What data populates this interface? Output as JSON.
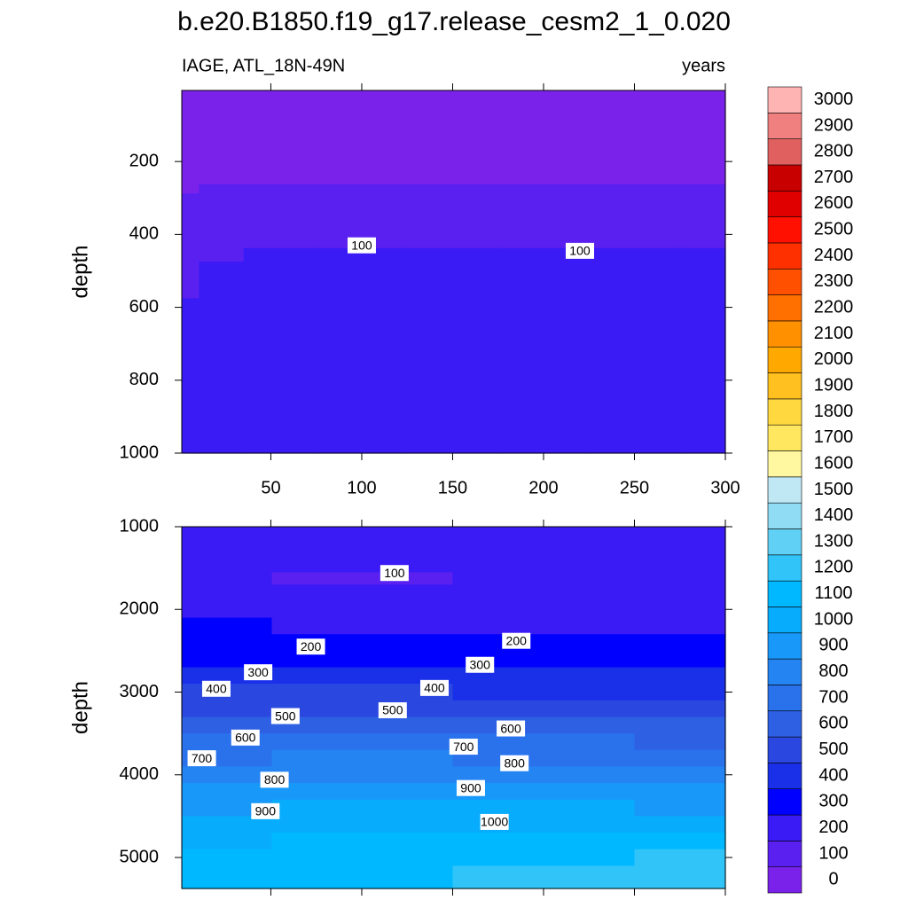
{
  "title": "b.e20.B1850.f19_g17.release_cesm2_1_0.020",
  "chart_data": [
    {
      "type": "contour",
      "left_string": "IAGE, ATL_18N-49N",
      "right_string": "years",
      "ylabel": "depth",
      "x": [
        1,
        20,
        50,
        100,
        150,
        200,
        250,
        300
      ],
      "depth": [
        5,
        100,
        200,
        250,
        275,
        300,
        350,
        400,
        425,
        450,
        500,
        550,
        600,
        800,
        1000
      ],
      "values": [
        [
          0,
          0,
          0,
          0,
          0,
          0,
          0,
          0
        ],
        [
          0,
          0,
          0,
          0,
          0,
          0,
          0,
          0
        ],
        [
          0,
          0,
          0,
          0,
          0,
          0,
          0,
          0
        ],
        [
          0,
          0,
          0,
          0,
          0,
          0,
          0,
          0
        ],
        [
          0,
          5,
          10,
          10,
          10,
          10,
          10,
          10
        ],
        [
          5,
          20,
          30,
          30,
          30,
          30,
          30,
          30
        ],
        [
          20,
          45,
          60,
          60,
          60,
          60,
          60,
          60
        ],
        [
          40,
          70,
          85,
          85,
          85,
          85,
          88,
          85
        ],
        [
          48,
          85,
          98,
          98,
          97,
          98,
          99,
          98
        ],
        [
          55,
          100,
          110,
          110,
          110,
          110,
          110,
          110
        ],
        [
          70,
          115,
          125,
          125,
          125,
          125,
          125,
          125
        ],
        [
          90,
          130,
          140,
          140,
          140,
          140,
          140,
          140
        ],
        [
          105,
          145,
          150,
          150,
          150,
          150,
          150,
          150
        ],
        [
          150,
          170,
          170,
          170,
          170,
          170,
          170,
          170
        ],
        [
          185,
          190,
          190,
          190,
          190,
          190,
          190,
          190
        ]
      ],
      "xlim": [
        1,
        300
      ],
      "ylim": [
        5,
        1000
      ],
      "y_reversed": true,
      "show_xtick_labels": true,
      "xticks": [
        50,
        100,
        150,
        200,
        250,
        300
      ],
      "yticks": [
        200,
        400,
        600,
        800,
        1000
      ],
      "contour_labels": [
        {
          "value": 100,
          "x": 100,
          "depth": 430
        },
        {
          "value": 100,
          "x": 220,
          "depth": 445
        }
      ]
    },
    {
      "type": "contour",
      "ylabel": "depth",
      "x": [
        1,
        100,
        200,
        300
      ],
      "depth": [
        1000,
        1500,
        1600,
        1800,
        2000,
        2200,
        2400,
        2600,
        2800,
        3000,
        3200,
        3400,
        3600,
        3800,
        4000,
        4200,
        4400,
        4600,
        4800,
        5000,
        5200,
        5375
      ],
      "values": [
        [
          190,
          190,
          190,
          190
        ],
        [
          160,
          150,
          150,
          160
        ],
        [
          150,
          95,
          110,
          150
        ],
        [
          160,
          150,
          150,
          160
        ],
        [
          180,
          170,
          165,
          170
        ],
        [
          210,
          200,
          195,
          190
        ],
        [
          250,
          240,
          230,
          220
        ],
        [
          280,
          290,
          275,
          260
        ],
        [
          320,
          350,
          330,
          310
        ],
        [
          410,
          410,
          390,
          370
        ],
        [
          480,
          480,
          460,
          440
        ],
        [
          560,
          560,
          535,
          510
        ],
        [
          640,
          640,
          615,
          590
        ],
        [
          700,
          710,
          690,
          670
        ],
        [
          780,
          790,
          765,
          740
        ],
        [
          840,
          860,
          840,
          820
        ],
        [
          900,
          930,
          910,
          890
        ],
        [
          940,
          990,
          975,
          960
        ],
        [
          975,
          1030,
          1040,
          1050
        ],
        [
          1005,
          1060,
          1085,
          1110
        ],
        [
          1030,
          1080,
          1105,
          1130
        ],
        [
          1040,
          1090,
          1120,
          1150
        ]
      ],
      "xlim": [
        1,
        300
      ],
      "ylim": [
        1000,
        5375
      ],
      "y_reversed": true,
      "show_xtick_labels": false,
      "xticks": [
        50,
        100,
        150,
        200,
        250,
        300
      ],
      "yticks": [
        1000,
        2000,
        3000,
        4000,
        5000
      ],
      "contour_labels": [
        {
          "value": 100,
          "x": 118,
          "depth": 1560
        },
        {
          "value": 200,
          "x": 72,
          "depth": 2450
        },
        {
          "value": 200,
          "x": 185,
          "depth": 2380
        },
        {
          "value": 300,
          "x": 43,
          "depth": 2760
        },
        {
          "value": 300,
          "x": 165,
          "depth": 2670
        },
        {
          "value": 400,
          "x": 20,
          "depth": 2960
        },
        {
          "value": 400,
          "x": 140,
          "depth": 2950
        },
        {
          "value": 500,
          "x": 58,
          "depth": 3290
        },
        {
          "value": 500,
          "x": 117,
          "depth": 3220
        },
        {
          "value": 600,
          "x": 36,
          "depth": 3550
        },
        {
          "value": 600,
          "x": 182,
          "depth": 3440
        },
        {
          "value": 700,
          "x": 12,
          "depth": 3800
        },
        {
          "value": 700,
          "x": 156,
          "depth": 3660
        },
        {
          "value": 800,
          "x": 52,
          "depth": 4060
        },
        {
          "value": 800,
          "x": 184,
          "depth": 3860
        },
        {
          "value": 900,
          "x": 47,
          "depth": 4440
        },
        {
          "value": 900,
          "x": 160,
          "depth": 4160
        },
        {
          "value": 1000,
          "x": 173,
          "depth": 4570
        }
      ]
    }
  ],
  "colorbar": {
    "levels": [
      0,
      100,
      200,
      300,
      400,
      500,
      600,
      700,
      800,
      900,
      1000,
      1100,
      1200,
      1300,
      1400,
      1500,
      1600,
      1700,
      1800,
      1900,
      2000,
      2100,
      2200,
      2300,
      2400,
      2500,
      2600,
      2700,
      2800,
      2900,
      3000
    ],
    "colors": [
      "#7b22ea",
      "#5a20f0",
      "#3a1af5",
      "#0000ff",
      "#1a30e8",
      "#2a48e0",
      "#2e60e4",
      "#2a72ec",
      "#2484f2",
      "#1898f8",
      "#08acfc",
      "#00b8ff",
      "#30c4f8",
      "#60d0f4",
      "#90dcf4",
      "#c0e8f4",
      "#fff8a0",
      "#ffe860",
      "#ffd840",
      "#ffc020",
      "#ffa800",
      "#ff9000",
      "#ff7000",
      "#ff5000",
      "#ff3000",
      "#ff1000",
      "#e00000",
      "#c80000",
      "#e06060",
      "#f08080",
      "#ffb4b4"
    ]
  }
}
